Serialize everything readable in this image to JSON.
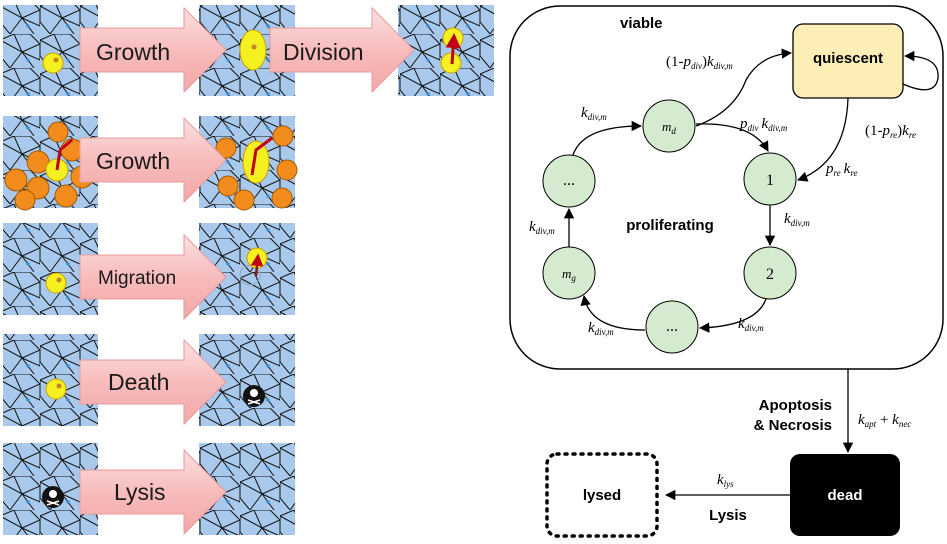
{
  "left_panels": {
    "growth1": "Growth",
    "division": "Division",
    "growth2": "Growth",
    "migration": "Migration",
    "death": "Death",
    "lysis": "Lysis"
  },
  "diagram": {
    "viable": "viable",
    "quiescent": "quiescent",
    "proliferating": "proliferating",
    "dead": "dead",
    "lysed": "lysed",
    "apoptosis_line1": "Apoptosis",
    "apoptosis_line2": "& Necrosis",
    "lysis_label": "Lysis",
    "node_1": "1",
    "node_2": "2",
    "node_ellipsis": "...",
    "node_md": "m",
    "node_md_sub": "d",
    "node_mg": "m",
    "node_mg_sub": "g",
    "k": "k",
    "sub_divm": "div,m",
    "sub_re": "re",
    "sub_div": "div",
    "sub_apt": "apt",
    "sub_nec": "nec",
    "sub_lys": "lys",
    "p": "p",
    "one_minus_open": "(1-",
    "close_paren": ")",
    "plus": " + "
  },
  "colors": {
    "mesh_bg": "#a9c9ec",
    "cell_yellow": "#f5f020",
    "cell_orange": "#f28c1c",
    "arrow_fill": "#f6b9b9",
    "quiescent_fill": "#fdeeb8",
    "node_fill": "#d4ebcf"
  }
}
